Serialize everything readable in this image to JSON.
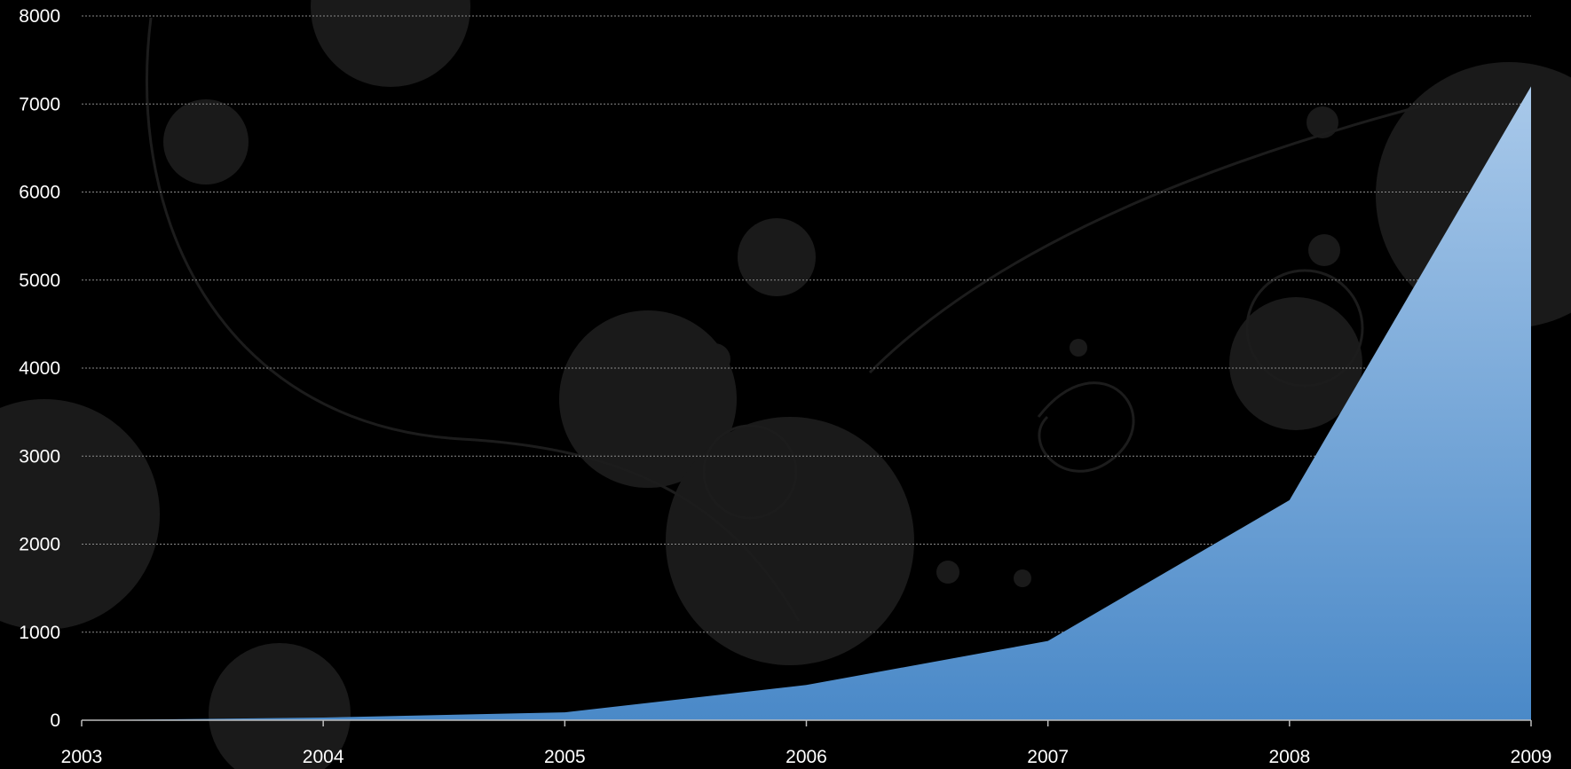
{
  "chart_data": {
    "type": "area",
    "title": "",
    "xlabel": "",
    "ylabel": "",
    "categories": [
      "2003",
      "2004",
      "2005",
      "2006",
      "2007",
      "2008",
      "2009"
    ],
    "series": [
      {
        "values": [
          0,
          30,
          90,
          400,
          900,
          2500,
          7200
        ]
      }
    ],
    "ylim": [
      0,
      8000
    ],
    "y_ticks": [
      0,
      1000,
      2000,
      3000,
      4000,
      5000,
      6000,
      7000,
      8000
    ],
    "grid": true,
    "legend": "none",
    "colors": {
      "background": "#000000",
      "area_top": "#a9c9ea",
      "area_bottom": "#4a89c8",
      "text": "#ffffff",
      "grid": "#8a8a8a",
      "axis": "#bdbdbd"
    }
  }
}
